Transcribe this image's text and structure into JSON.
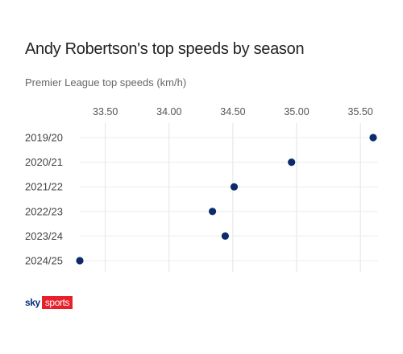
{
  "header": {
    "title": "Andy Robertson's top speeds by season",
    "subtitle": "Premier League top speeds (km/h)"
  },
  "brand": {
    "sky": "sky",
    "sports": "sports",
    "sky_color": "#0a2a7a",
    "sports_color": "#e8202b"
  },
  "chart_data": {
    "type": "scatter",
    "title": "Andy Robertson's top speeds by season",
    "subtitle": "Premier League top speeds (km/h)",
    "categories": [
      "2019/20",
      "2020/21",
      "2021/22",
      "2022/23",
      "2023/24",
      "2024/25"
    ],
    "values": [
      35.6,
      34.96,
      34.51,
      34.34,
      34.44,
      33.3
    ],
    "xticks": [
      33.5,
      34.0,
      34.5,
      35.0,
      35.5
    ],
    "xtick_labels": [
      "33.50",
      "34.00",
      "34.50",
      "35.00",
      "35.50"
    ],
    "xlim": [
      33.3,
      35.6
    ],
    "x_axis_position": "top",
    "grid": true,
    "marker_color": "#0d2b6b"
  }
}
